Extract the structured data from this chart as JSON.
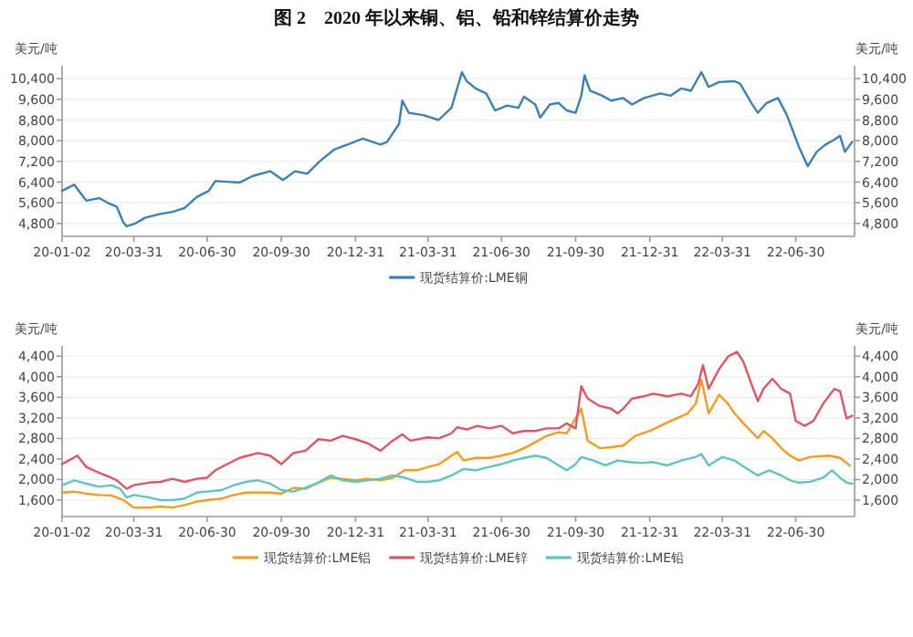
{
  "chart_data": [
    {
      "type": "line",
      "title": "图 2　2020 年以来铜、铝、铅和锌结算价走势",
      "ylabel": "美元/吨",
      "y2label": "美元/吨",
      "xlim": [
        "2020-01-02",
        "2022-09-11"
      ],
      "xticks": [
        {
          "value": "2020-01-02",
          "label": "20-01-02"
        },
        {
          "value": "2020-03-31",
          "label": "20-03-31"
        },
        {
          "value": "2020-06-30",
          "label": "20-06-30"
        },
        {
          "value": "2020-09-30",
          "label": "20-09-30"
        },
        {
          "value": "2020-12-31",
          "label": "20-12-31"
        },
        {
          "value": "2021-03-31",
          "label": "21-03-31"
        },
        {
          "value": "2021-06-30",
          "label": "21-06-30"
        },
        {
          "value": "2021-09-30",
          "label": "21-09-30"
        },
        {
          "value": "2021-12-31",
          "label": "21-12-31"
        },
        {
          "value": "2022-03-31",
          "label": "22-03-31"
        },
        {
          "value": "2022-06-30",
          "label": "22-06-30"
        }
      ],
      "ylim": [
        4300,
        10900
      ],
      "yticks": [
        {
          "value": 4800,
          "label": "4,800"
        },
        {
          "value": 5600,
          "label": "5,600"
        },
        {
          "value": 6400,
          "label": "6,400"
        },
        {
          "value": 7200,
          "label": "7,200"
        },
        {
          "value": 8000,
          "label": "8,000"
        },
        {
          "value": 8800,
          "label": "8,800"
        },
        {
          "value": 9600,
          "label": "9,600"
        },
        {
          "value": 10400,
          "label": "10,400"
        }
      ],
      "y2lim": [
        4300,
        10900
      ],
      "y2ticks": [
        {
          "value": 4800,
          "label": "4,800"
        },
        {
          "value": 5600,
          "label": "5,600"
        },
        {
          "value": 6400,
          "label": "6,400"
        },
        {
          "value": 7200,
          "label": "7,200"
        },
        {
          "value": 8000,
          "label": "8,000"
        },
        {
          "value": 8800,
          "label": "8,800"
        },
        {
          "value": 9600,
          "label": "9,600"
        },
        {
          "value": 10400,
          "label": "10,400"
        }
      ],
      "grid": "y",
      "legend": "bottom",
      "series": [
        {
          "name": "现货结算价:LME铜",
          "color": "#3b82b4",
          "x": [
            "2020-01-02",
            "2020-01-17",
            "2020-01-25",
            "2020-02-01",
            "2020-02-17",
            "2020-02-28",
            "2020-03-10",
            "2020-03-18",
            "2020-03-22",
            "2020-04-02",
            "2020-04-14",
            "2020-05-03",
            "2020-05-18",
            "2020-06-02",
            "2020-06-17",
            "2020-07-02",
            "2020-07-10",
            "2020-08-09",
            "2020-08-25",
            "2020-09-16",
            "2020-10-02",
            "2020-10-17",
            "2020-11-01",
            "2020-11-16",
            "2020-12-05",
            "2020-12-24",
            "2021-01-09",
            "2021-01-31",
            "2021-02-08",
            "2021-02-23",
            "2021-02-27",
            "2021-03-07",
            "2021-03-25",
            "2021-04-13",
            "2021-04-29",
            "2021-05-06",
            "2021-05-12",
            "2021-05-18",
            "2021-05-29",
            "2021-06-11",
            "2021-06-22",
            "2021-07-07",
            "2021-07-21",
            "2021-07-28",
            "2021-08-11",
            "2021-08-17",
            "2021-08-29",
            "2021-09-09",
            "2021-09-19",
            "2021-09-30",
            "2021-10-07",
            "2021-10-11",
            "2021-10-18",
            "2021-11-02",
            "2021-11-13",
            "2021-11-28",
            "2021-12-09",
            "2021-12-24",
            "2022-01-13",
            "2022-01-26",
            "2022-02-08",
            "2022-02-20",
            "2022-03-05",
            "2022-03-14",
            "2022-03-27",
            "2022-04-15",
            "2022-04-22",
            "2022-05-06",
            "2022-05-14",
            "2022-05-25",
            "2022-06-08",
            "2022-06-19",
            "2022-06-26",
            "2022-07-04",
            "2022-07-15",
            "2022-07-26",
            "2022-08-06",
            "2022-08-17",
            "2022-08-24",
            "2022-08-30",
            "2022-09-08"
          ],
          "values": [
            6060,
            6300,
            5970,
            5680,
            5780,
            5590,
            5440,
            4840,
            4690,
            4800,
            5020,
            5170,
            5250,
            5400,
            5820,
            6060,
            6440,
            6380,
            6630,
            6820,
            6480,
            6820,
            6720,
            7190,
            7670,
            7890,
            8080,
            7850,
            7950,
            8650,
            9550,
            9080,
            8990,
            8800,
            9270,
            10020,
            10650,
            10300,
            10020,
            9830,
            9170,
            9360,
            9270,
            9700,
            9400,
            8890,
            9400,
            9460,
            9170,
            9080,
            9740,
            10530,
            9930,
            9740,
            9550,
            9650,
            9400,
            9650,
            9830,
            9740,
            10020,
            9930,
            10650,
            10080,
            10270,
            10300,
            10210,
            9460,
            9080,
            9460,
            9650,
            8990,
            8420,
            7760,
            7010,
            7570,
            7850,
            8040,
            8190,
            7570,
            7950
          ]
        }
      ]
    },
    {
      "type": "line",
      "ylabel": "美元/吨",
      "y2label": "美元/吨",
      "xlim": [
        "2020-01-02",
        "2022-09-11"
      ],
      "xticks": [
        {
          "value": "2020-01-02",
          "label": "20-01-02"
        },
        {
          "value": "2020-03-31",
          "label": "20-03-31"
        },
        {
          "value": "2020-06-30",
          "label": "20-06-30"
        },
        {
          "value": "2020-09-30",
          "label": "20-09-30"
        },
        {
          "value": "2020-12-31",
          "label": "20-12-31"
        },
        {
          "value": "2021-03-31",
          "label": "21-03-31"
        },
        {
          "value": "2021-06-30",
          "label": "21-06-30"
        },
        {
          "value": "2021-09-30",
          "label": "21-09-30"
        },
        {
          "value": "2021-12-31",
          "label": "21-12-31"
        },
        {
          "value": "2022-03-31",
          "label": "22-03-31"
        },
        {
          "value": "2022-06-30",
          "label": "22-06-30"
        }
      ],
      "ylim": [
        1280,
        4600
      ],
      "yticks": [
        {
          "value": 1600,
          "label": "1,600"
        },
        {
          "value": 2000,
          "label": "2,000"
        },
        {
          "value": 2400,
          "label": "2,400"
        },
        {
          "value": 2800,
          "label": "2,800"
        },
        {
          "value": 3200,
          "label": "3,200"
        },
        {
          "value": 3600,
          "label": "3,600"
        },
        {
          "value": 4000,
          "label": "4,000"
        },
        {
          "value": 4400,
          "label": "4,400"
        }
      ],
      "y2lim": [
        1280,
        4600
      ],
      "y2ticks": [
        {
          "value": 1600,
          "label": "1,600"
        },
        {
          "value": 2000,
          "label": "2,000"
        },
        {
          "value": 2400,
          "label": "2,400"
        },
        {
          "value": 2800,
          "label": "2,800"
        },
        {
          "value": 3200,
          "label": "3,200"
        },
        {
          "value": 3600,
          "label": "3,600"
        },
        {
          "value": 4000,
          "label": "4,000"
        },
        {
          "value": 4400,
          "label": "4,400"
        }
      ],
      "grid": "y",
      "legend": "bottom",
      "series": [
        {
          "name": "现货结算价:LME铝",
          "color": "#f39c1f",
          "x": [
            "2020-01-02",
            "2020-01-17",
            "2020-02-01",
            "2020-02-17",
            "2020-03-03",
            "2020-03-18",
            "2020-03-31",
            "2020-04-19",
            "2020-05-03",
            "2020-05-18",
            "2020-06-02",
            "2020-06-17",
            "2020-06-30",
            "2020-07-18",
            "2020-08-02",
            "2020-08-17",
            "2020-09-01",
            "2020-09-16",
            "2020-09-30",
            "2020-10-15",
            "2020-10-30",
            "2020-11-15",
            "2020-11-30",
            "2020-12-15",
            "2020-12-31",
            "2021-01-15",
            "2021-01-31",
            "2021-02-15",
            "2021-03-02",
            "2021-03-17",
            "2021-03-31",
            "2021-04-14",
            "2021-04-29",
            "2021-05-06",
            "2021-05-14",
            "2021-05-29",
            "2021-06-15",
            "2021-06-30",
            "2021-07-14",
            "2021-07-28",
            "2021-08-11",
            "2021-08-25",
            "2021-09-09",
            "2021-09-19",
            "2021-10-07",
            "2021-10-15",
            "2021-10-30",
            "2021-11-13",
            "2021-11-28",
            "2021-12-13",
            "2021-12-31",
            "2022-01-13",
            "2022-01-30",
            "2022-02-16",
            "2022-02-26",
            "2022-03-05",
            "2022-03-14",
            "2022-03-27",
            "2022-04-07",
            "2022-04-15",
            "2022-04-29",
            "2022-05-14",
            "2022-05-21",
            "2022-06-01",
            "2022-06-12",
            "2022-06-23",
            "2022-07-04",
            "2022-07-18",
            "2022-08-10",
            "2022-08-24",
            "2022-09-05"
          ],
          "values": [
            1745,
            1765,
            1725,
            1700,
            1690,
            1600,
            1455,
            1455,
            1475,
            1455,
            1505,
            1570,
            1600,
            1630,
            1700,
            1745,
            1745,
            1745,
            1725,
            1840,
            1820,
            1940,
            2035,
            2015,
            1985,
            2015,
            1985,
            2035,
            2180,
            2180,
            2245,
            2300,
            2465,
            2535,
            2370,
            2420,
            2420,
            2465,
            2515,
            2610,
            2725,
            2850,
            2920,
            2900,
            3380,
            2755,
            2610,
            2630,
            2660,
            2850,
            2945,
            3045,
            3170,
            3285,
            3475,
            3940,
            3285,
            3650,
            3475,
            3285,
            3045,
            2805,
            2945,
            2805,
            2610,
            2465,
            2370,
            2440,
            2465,
            2420,
            2275
          ]
        },
        {
          "name": "现货结算价:LME锌",
          "color": "#e05566",
          "x": [
            "2020-01-02",
            "2020-01-10",
            "2020-01-21",
            "2020-02-01",
            "2020-02-17",
            "2020-03-03",
            "2020-03-10",
            "2020-03-22",
            "2020-03-31",
            "2020-04-19",
            "2020-05-03",
            "2020-05-18",
            "2020-06-02",
            "2020-06-17",
            "2020-06-30",
            "2020-07-10",
            "2020-07-25",
            "2020-08-09",
            "2020-09-01",
            "2020-09-16",
            "2020-09-30",
            "2020-10-15",
            "2020-10-30",
            "2020-11-15",
            "2020-11-30",
            "2020-12-15",
            "2020-12-31",
            "2021-01-15",
            "2021-01-31",
            "2021-02-15",
            "2021-02-27",
            "2021-03-09",
            "2021-03-31",
            "2021-04-14",
            "2021-04-29",
            "2021-05-06",
            "2021-05-18",
            "2021-05-31",
            "2021-06-15",
            "2021-06-30",
            "2021-07-14",
            "2021-07-28",
            "2021-08-11",
            "2021-08-25",
            "2021-09-09",
            "2021-09-19",
            "2021-09-30",
            "2021-10-07",
            "2021-10-15",
            "2021-10-30",
            "2021-11-13",
            "2021-11-21",
            "2021-11-28",
            "2021-12-09",
            "2021-12-24",
            "2022-01-04",
            "2022-01-22",
            "2022-02-08",
            "2022-02-20",
            "2022-03-01",
            "2022-03-07",
            "2022-03-14",
            "2022-03-27",
            "2022-04-07",
            "2022-04-18",
            "2022-04-26",
            "2022-05-06",
            "2022-05-14",
            "2022-05-21",
            "2022-06-01",
            "2022-06-12",
            "2022-06-23",
            "2022-06-30",
            "2022-07-11",
            "2022-07-22",
            "2022-08-03",
            "2022-08-17",
            "2022-08-24",
            "2022-09-01",
            "2022-09-08"
          ],
          "values": [
            2300,
            2370,
            2465,
            2245,
            2130,
            2035,
            1985,
            1820,
            1890,
            1940,
            1955,
            2015,
            1955,
            2015,
            2035,
            2180,
            2300,
            2420,
            2515,
            2465,
            2300,
            2515,
            2560,
            2785,
            2755,
            2850,
            2785,
            2705,
            2560,
            2755,
            2880,
            2755,
            2820,
            2805,
            2900,
            3015,
            2975,
            3045,
            2995,
            3045,
            2900,
            2945,
            2945,
            2995,
            2995,
            3090,
            2995,
            3815,
            3575,
            3430,
            3380,
            3285,
            3380,
            3575,
            3620,
            3670,
            3620,
            3670,
            3620,
            3860,
            4225,
            3765,
            4150,
            4390,
            4485,
            4295,
            3860,
            3525,
            3765,
            3960,
            3765,
            3670,
            3140,
            3045,
            3140,
            3475,
            3765,
            3720,
            3190,
            3240
          ]
        },
        {
          "name": "现货结算价:LME铅",
          "color": "#5cc6c4",
          "x": [
            "2020-01-02",
            "2020-01-17",
            "2020-02-01",
            "2020-02-17",
            "2020-03-03",
            "2020-03-14",
            "2020-03-22",
            "2020-03-31",
            "2020-04-19",
            "2020-05-03",
            "2020-05-18",
            "2020-06-02",
            "2020-06-17",
            "2020-06-30",
            "2020-07-18",
            "2020-08-02",
            "2020-08-17",
            "2020-09-01",
            "2020-09-16",
            "2020-09-30",
            "2020-10-15",
            "2020-10-30",
            "2020-11-15",
            "2020-11-30",
            "2020-12-15",
            "2020-12-31",
            "2021-01-15",
            "2021-01-31",
            "2021-02-15",
            "2021-03-02",
            "2021-03-17",
            "2021-03-31",
            "2021-04-14",
            "2021-04-29",
            "2021-05-14",
            "2021-05-29",
            "2021-06-15",
            "2021-06-30",
            "2021-07-14",
            "2021-07-28",
            "2021-08-11",
            "2021-08-25",
            "2021-09-09",
            "2021-09-19",
            "2021-09-30",
            "2021-10-07",
            "2021-10-22",
            "2021-11-06",
            "2021-11-21",
            "2021-12-05",
            "2021-12-20",
            "2022-01-04",
            "2022-01-22",
            "2022-02-08",
            "2022-02-26",
            "2022-03-05",
            "2022-03-14",
            "2022-03-31",
            "2022-04-15",
            "2022-04-29",
            "2022-05-14",
            "2022-05-28",
            "2022-06-12",
            "2022-06-23",
            "2022-07-04",
            "2022-07-18",
            "2022-08-03",
            "2022-08-14",
            "2022-08-24",
            "2022-09-01",
            "2022-09-08"
          ],
          "values": [
            1890,
            1985,
            1920,
            1860,
            1890,
            1820,
            1650,
            1700,
            1650,
            1600,
            1600,
            1630,
            1745,
            1765,
            1795,
            1890,
            1955,
            1985,
            1920,
            1795,
            1765,
            1840,
            1940,
            2080,
            1985,
            1955,
            1985,
            2015,
            2080,
            2035,
            1955,
            1955,
            1985,
            2080,
            2205,
            2180,
            2245,
            2300,
            2370,
            2420,
            2465,
            2420,
            2275,
            2180,
            2300,
            2440,
            2370,
            2275,
            2370,
            2340,
            2320,
            2340,
            2275,
            2370,
            2440,
            2495,
            2275,
            2440,
            2370,
            2225,
            2080,
            2180,
            2080,
            1985,
            1940,
            1955,
            2035,
            2180,
            2035,
            1940,
            1920
          ]
        }
      ]
    }
  ]
}
